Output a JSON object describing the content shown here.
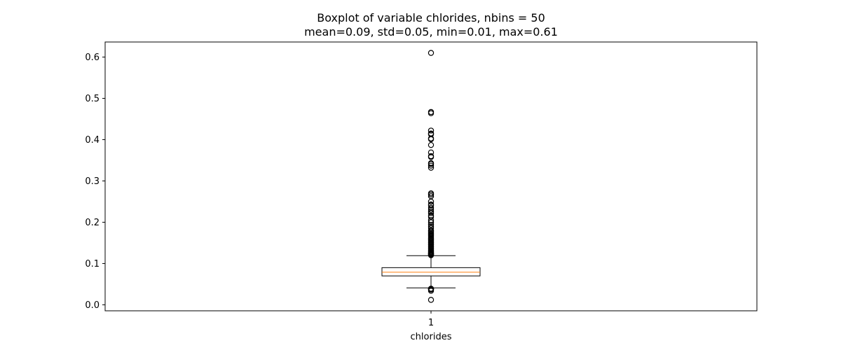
{
  "chart_data": {
    "type": "boxplot",
    "title": "Boxplot of variable chlorides, nbins = 50",
    "subtitle": "mean=0.09, std=0.05, min=0.01, max=0.61",
    "xlabel": "chlorides",
    "ylabel": "",
    "x_ticks": [
      "1"
    ],
    "ylim": [
      -0.0145,
      0.6365
    ],
    "y_ticks": [
      0.0,
      0.1,
      0.2,
      0.3,
      0.4,
      0.5,
      0.6
    ],
    "y_tick_labels": [
      "0.0",
      "0.1",
      "0.2",
      "0.3",
      "0.4",
      "0.5",
      "0.6"
    ],
    "grid": false,
    "colors": {
      "box": "#000000",
      "median": "#ff7f0e",
      "flier": "#000000"
    },
    "series": [
      {
        "position": 1,
        "stats": {
          "whisker_low": 0.041,
          "q1": 0.07,
          "median": 0.079,
          "q3": 0.09,
          "whisker_high": 0.119
        },
        "fliers": [
          0.012,
          0.034,
          0.037,
          0.038,
          0.039,
          0.039,
          0.12,
          0.121,
          0.122,
          0.123,
          0.124,
          0.125,
          0.126,
          0.128,
          0.13,
          0.132,
          0.135,
          0.137,
          0.14,
          0.142,
          0.145,
          0.147,
          0.15,
          0.152,
          0.155,
          0.158,
          0.16,
          0.162,
          0.165,
          0.168,
          0.17,
          0.172,
          0.175,
          0.178,
          0.18,
          0.186,
          0.19,
          0.194,
          0.2,
          0.205,
          0.213,
          0.216,
          0.222,
          0.226,
          0.23,
          0.235,
          0.241,
          0.243,
          0.25,
          0.263,
          0.267,
          0.27,
          0.332,
          0.337,
          0.341,
          0.343,
          0.358,
          0.36,
          0.369,
          0.387,
          0.401,
          0.403,
          0.413,
          0.414,
          0.415,
          0.422,
          0.464,
          0.467,
          0.61
        ]
      }
    ]
  }
}
